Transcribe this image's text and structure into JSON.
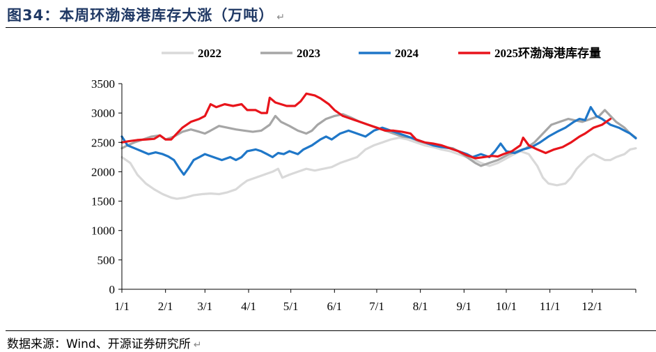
{
  "figure": {
    "title": "图34：本周环渤海港库存大涨（万吨）",
    "source": "数据来源：Wind、开源证券研究所"
  },
  "chart_data": {
    "type": "line",
    "title": "图34：本周环渤海港库存大涨（万吨）",
    "xlabel": "",
    "ylabel": "",
    "ylim": [
      0,
      3500
    ],
    "y_ticks": [
      0,
      500,
      1000,
      1500,
      2000,
      2500,
      3000,
      3500
    ],
    "x_ticks": [
      "1/1",
      "2/1",
      "3/1",
      "4/1",
      "5/1",
      "6/1",
      "7/1",
      "8/1",
      "9/1",
      "10/1",
      "11/1",
      "12/1"
    ],
    "x_tick_days": [
      1,
      32,
      60,
      91,
      121,
      152,
      182,
      213,
      244,
      274,
      305,
      335
    ],
    "x_range": [
      1,
      366
    ],
    "grid": false,
    "legend_position": "top",
    "series": [
      {
        "name": "2022",
        "color": "#d9d9d9",
        "points": [
          [
            1,
            2250
          ],
          [
            7,
            2150
          ],
          [
            12,
            1950
          ],
          [
            18,
            1800
          ],
          [
            24,
            1700
          ],
          [
            30,
            1620
          ],
          [
            36,
            1560
          ],
          [
            40,
            1540
          ],
          [
            46,
            1560
          ],
          [
            52,
            1600
          ],
          [
            58,
            1620
          ],
          [
            64,
            1630
          ],
          [
            70,
            1620
          ],
          [
            76,
            1650
          ],
          [
            82,
            1700
          ],
          [
            86,
            1780
          ],
          [
            90,
            1850
          ],
          [
            96,
            1900
          ],
          [
            102,
            1950
          ],
          [
            108,
            2000
          ],
          [
            112,
            2050
          ],
          [
            115,
            1900
          ],
          [
            120,
            1950
          ],
          [
            126,
            2000
          ],
          [
            132,
            2050
          ],
          [
            138,
            2020
          ],
          [
            144,
            2050
          ],
          [
            150,
            2080
          ],
          [
            156,
            2150
          ],
          [
            162,
            2200
          ],
          [
            168,
            2250
          ],
          [
            174,
            2380
          ],
          [
            180,
            2450
          ],
          [
            186,
            2500
          ],
          [
            192,
            2550
          ],
          [
            198,
            2580
          ],
          [
            204,
            2550
          ],
          [
            210,
            2500
          ],
          [
            216,
            2450
          ],
          [
            222,
            2420
          ],
          [
            228,
            2380
          ],
          [
            234,
            2350
          ],
          [
            240,
            2300
          ],
          [
            246,
            2250
          ],
          [
            252,
            2200
          ],
          [
            256,
            2150
          ],
          [
            262,
            2100
          ],
          [
            268,
            2150
          ],
          [
            272,
            2200
          ],
          [
            278,
            2280
          ],
          [
            284,
            2350
          ],
          [
            290,
            2300
          ],
          [
            296,
            2100
          ],
          [
            300,
            1900
          ],
          [
            304,
            1800
          ],
          [
            310,
            1770
          ],
          [
            316,
            1800
          ],
          [
            320,
            1900
          ],
          [
            324,
            2050
          ],
          [
            328,
            2150
          ],
          [
            332,
            2250
          ],
          [
            336,
            2300
          ],
          [
            340,
            2250
          ],
          [
            344,
            2200
          ],
          [
            348,
            2200
          ],
          [
            352,
            2250
          ],
          [
            358,
            2300
          ],
          [
            362,
            2380
          ],
          [
            366,
            2400
          ]
        ]
      },
      {
        "name": "2023",
        "color": "#a6a6a6",
        "points": [
          [
            1,
            2400
          ],
          [
            5,
            2450
          ],
          [
            10,
            2500
          ],
          [
            16,
            2550
          ],
          [
            22,
            2600
          ],
          [
            28,
            2620
          ],
          [
            32,
            2550
          ],
          [
            38,
            2600
          ],
          [
            44,
            2680
          ],
          [
            50,
            2720
          ],
          [
            56,
            2680
          ],
          [
            60,
            2650
          ],
          [
            64,
            2700
          ],
          [
            70,
            2780
          ],
          [
            76,
            2750
          ],
          [
            82,
            2720
          ],
          [
            88,
            2700
          ],
          [
            94,
            2680
          ],
          [
            100,
            2700
          ],
          [
            106,
            2800
          ],
          [
            110,
            2950
          ],
          [
            114,
            2850
          ],
          [
            120,
            2780
          ],
          [
            126,
            2700
          ],
          [
            132,
            2650
          ],
          [
            136,
            2700
          ],
          [
            140,
            2800
          ],
          [
            146,
            2900
          ],
          [
            152,
            2950
          ],
          [
            158,
            2980
          ],
          [
            164,
            2920
          ],
          [
            170,
            2850
          ],
          [
            176,
            2800
          ],
          [
            182,
            2750
          ],
          [
            188,
            2700
          ],
          [
            194,
            2650
          ],
          [
            200,
            2600
          ],
          [
            206,
            2580
          ],
          [
            212,
            2520
          ],
          [
            218,
            2480
          ],
          [
            224,
            2450
          ],
          [
            230,
            2420
          ],
          [
            236,
            2400
          ],
          [
            240,
            2350
          ],
          [
            246,
            2250
          ],
          [
            252,
            2150
          ],
          [
            256,
            2100
          ],
          [
            262,
            2150
          ],
          [
            268,
            2200
          ],
          [
            272,
            2250
          ],
          [
            276,
            2300
          ],
          [
            282,
            2350
          ],
          [
            288,
            2400
          ],
          [
            294,
            2500
          ],
          [
            300,
            2650
          ],
          [
            306,
            2800
          ],
          [
            312,
            2850
          ],
          [
            318,
            2900
          ],
          [
            322,
            2880
          ],
          [
            328,
            2850
          ],
          [
            334,
            2900
          ],
          [
            340,
            2950
          ],
          [
            344,
            3050
          ],
          [
            348,
            2950
          ],
          [
            352,
            2850
          ],
          [
            358,
            2750
          ],
          [
            362,
            2650
          ],
          [
            366,
            2580
          ]
        ]
      },
      {
        "name": "2024",
        "color": "#1f77c8",
        "points": [
          [
            1,
            2600
          ],
          [
            5,
            2450
          ],
          [
            10,
            2400
          ],
          [
            15,
            2350
          ],
          [
            20,
            2300
          ],
          [
            25,
            2330
          ],
          [
            30,
            2300
          ],
          [
            34,
            2260
          ],
          [
            38,
            2200
          ],
          [
            42,
            2050
          ],
          [
            45,
            1950
          ],
          [
            48,
            2050
          ],
          [
            52,
            2200
          ],
          [
            56,
            2250
          ],
          [
            60,
            2300
          ],
          [
            66,
            2250
          ],
          [
            72,
            2200
          ],
          [
            78,
            2250
          ],
          [
            82,
            2200
          ],
          [
            86,
            2250
          ],
          [
            90,
            2350
          ],
          [
            96,
            2380
          ],
          [
            100,
            2350
          ],
          [
            104,
            2300
          ],
          [
            108,
            2250
          ],
          [
            112,
            2320
          ],
          [
            116,
            2300
          ],
          [
            120,
            2350
          ],
          [
            126,
            2300
          ],
          [
            130,
            2380
          ],
          [
            136,
            2450
          ],
          [
            142,
            2550
          ],
          [
            146,
            2600
          ],
          [
            150,
            2550
          ],
          [
            156,
            2650
          ],
          [
            162,
            2700
          ],
          [
            168,
            2650
          ],
          [
            174,
            2600
          ],
          [
            180,
            2700
          ],
          [
            186,
            2750
          ],
          [
            192,
            2700
          ],
          [
            198,
            2650
          ],
          [
            204,
            2600
          ],
          [
            210,
            2550
          ],
          [
            216,
            2500
          ],
          [
            222,
            2450
          ],
          [
            228,
            2420
          ],
          [
            234,
            2400
          ],
          [
            240,
            2350
          ],
          [
            246,
            2300
          ],
          [
            250,
            2250
          ],
          [
            256,
            2300
          ],
          [
            262,
            2250
          ],
          [
            266,
            2350
          ],
          [
            270,
            2480
          ],
          [
            274,
            2350
          ],
          [
            280,
            2320
          ],
          [
            286,
            2380
          ],
          [
            292,
            2420
          ],
          [
            298,
            2500
          ],
          [
            304,
            2600
          ],
          [
            310,
            2680
          ],
          [
            316,
            2750
          ],
          [
            322,
            2850
          ],
          [
            326,
            2900
          ],
          [
            330,
            2880
          ],
          [
            334,
            3100
          ],
          [
            338,
            2950
          ],
          [
            342,
            2900
          ],
          [
            348,
            2800
          ],
          [
            354,
            2750
          ],
          [
            358,
            2700
          ],
          [
            362,
            2650
          ],
          [
            366,
            2570
          ]
        ]
      },
      {
        "name": "2025环渤海港库存量",
        "color": "#e8141b",
        "points": [
          [
            1,
            2500
          ],
          [
            6,
            2520
          ],
          [
            12,
            2540
          ],
          [
            18,
            2550
          ],
          [
            24,
            2560
          ],
          [
            28,
            2620
          ],
          [
            32,
            2550
          ],
          [
            36,
            2550
          ],
          [
            40,
            2650
          ],
          [
            44,
            2750
          ],
          [
            50,
            2850
          ],
          [
            56,
            2900
          ],
          [
            60,
            2950
          ],
          [
            64,
            3150
          ],
          [
            68,
            3100
          ],
          [
            74,
            3150
          ],
          [
            80,
            3120
          ],
          [
            86,
            3150
          ],
          [
            90,
            3050
          ],
          [
            96,
            3050
          ],
          [
            100,
            3000
          ],
          [
            104,
            3000
          ],
          [
            106,
            3260
          ],
          [
            110,
            3180
          ],
          [
            114,
            3150
          ],
          [
            118,
            3120
          ],
          [
            124,
            3120
          ],
          [
            128,
            3200
          ],
          [
            132,
            3330
          ],
          [
            138,
            3300
          ],
          [
            142,
            3250
          ],
          [
            148,
            3150
          ],
          [
            152,
            3050
          ],
          [
            158,
            2950
          ],
          [
            164,
            2900
          ],
          [
            170,
            2850
          ],
          [
            176,
            2800
          ],
          [
            182,
            2750
          ],
          [
            188,
            2700
          ],
          [
            194,
            2700
          ],
          [
            200,
            2680
          ],
          [
            206,
            2650
          ],
          [
            210,
            2550
          ],
          [
            216,
            2500
          ],
          [
            222,
            2480
          ],
          [
            228,
            2450
          ],
          [
            234,
            2400
          ],
          [
            240,
            2350
          ],
          [
            246,
            2280
          ],
          [
            252,
            2230
          ],
          [
            258,
            2250
          ],
          [
            264,
            2270
          ],
          [
            268,
            2260
          ],
          [
            272,
            2300
          ],
          [
            278,
            2350
          ],
          [
            284,
            2450
          ],
          [
            286,
            2580
          ],
          [
            290,
            2450
          ],
          [
            296,
            2380
          ],
          [
            302,
            2320
          ],
          [
            308,
            2380
          ],
          [
            314,
            2420
          ],
          [
            320,
            2500
          ],
          [
            326,
            2600
          ],
          [
            330,
            2650
          ],
          [
            336,
            2750
          ],
          [
            342,
            2800
          ],
          [
            348,
            2900
          ]
        ]
      }
    ]
  }
}
